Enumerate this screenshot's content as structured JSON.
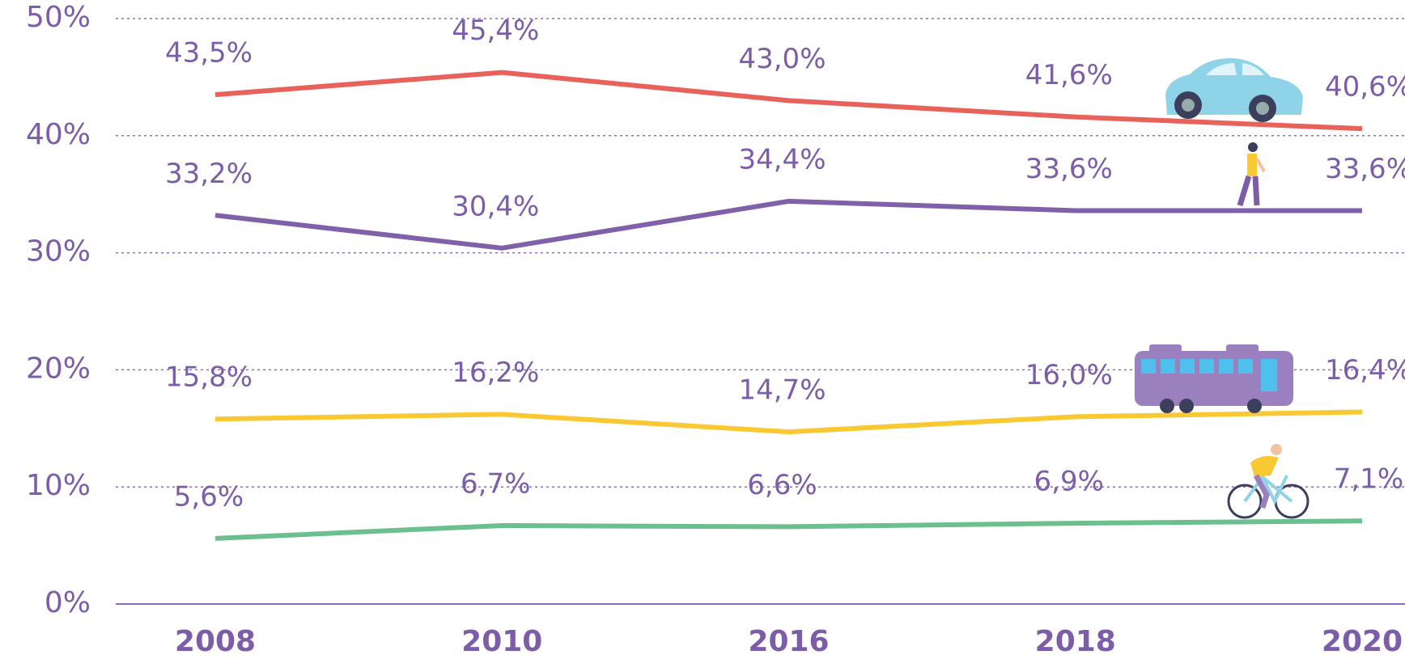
{
  "chart_data": {
    "type": "line",
    "categories": [
      "2008",
      "2010",
      "2016",
      "2018",
      "2020"
    ],
    "series": [
      {
        "color": "#e8615a",
        "values": [
          43.5,
          45.4,
          43.0,
          41.6,
          40.6
        ],
        "value_labels": [
          "43,5%",
          "45,4%",
          "43,0%",
          "41,6%",
          "40,6%"
        ]
      },
      {
        "color": "#8060a9",
        "values": [
          33.2,
          30.4,
          34.4,
          33.6,
          33.6
        ],
        "value_labels": [
          "33,2%",
          "30,4%",
          "34,4%",
          "33,6%",
          "33,6%"
        ]
      },
      {
        "color": "#f9c933",
        "values": [
          15.8,
          16.2,
          14.7,
          16.0,
          16.4
        ],
        "value_labels": [
          "15,8%",
          "16,2%",
          "14,7%",
          "16,0%",
          "16,4%"
        ]
      },
      {
        "color": "#6cc08f",
        "values": [
          5.6,
          6.7,
          6.6,
          6.9,
          7.1
        ],
        "value_labels": [
          "5,6%",
          "6,7%",
          "6,6%",
          "6,9%",
          "7,1%"
        ]
      }
    ],
    "ylim": [
      0,
      50
    ],
    "yticks": [
      {
        "value": 0,
        "label": "0%"
      },
      {
        "value": 10,
        "label": "10%"
      },
      {
        "value": 20,
        "label": "20%"
      },
      {
        "value": 30,
        "label": "30%"
      },
      {
        "value": 40,
        "label": "40%"
      },
      {
        "value": 50,
        "label": "50%"
      }
    ],
    "grid": true
  }
}
